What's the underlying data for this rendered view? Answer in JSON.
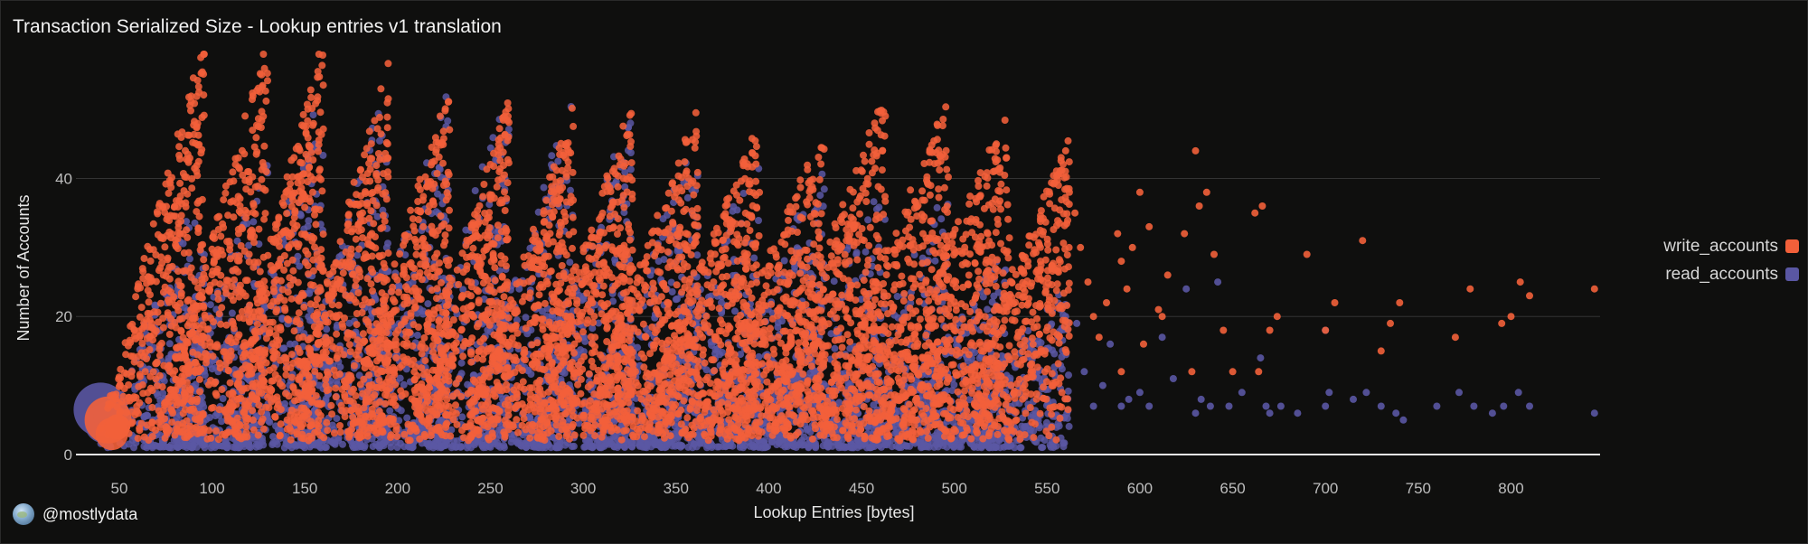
{
  "chart_data": {
    "type": "scatter",
    "title": "Transaction Serialized Size - Lookup entries v1 translation",
    "xlabel": "Lookup Entries [bytes]",
    "ylabel": "Number of Accounts",
    "xlim": [
      32,
      848
    ],
    "ylim": [
      0,
      58
    ],
    "x_ticks": [
      "50",
      "100",
      "150",
      "200",
      "250",
      "300",
      "350",
      "400",
      "450",
      "500",
      "550",
      "600",
      "650",
      "700",
      "750",
      "800"
    ],
    "x_tick_values": [
      50,
      100,
      150,
      200,
      250,
      300,
      350,
      400,
      450,
      500,
      550,
      600,
      650,
      700,
      750,
      800
    ],
    "y_ticks": [
      "0",
      "20",
      "40"
    ],
    "y_tick_values": [
      0,
      20,
      40
    ],
    "grid": true,
    "legend_position": "right",
    "clusters": [
      {
        "x_start": 40,
        "x_end": 96,
        "max_write": 59,
        "max_read": 40
      },
      {
        "x_start": 72,
        "x_end": 130,
        "max_write": 59,
        "max_read": 42
      },
      {
        "x_start": 106,
        "x_end": 160,
        "max_write": 59,
        "max_read": 55
      },
      {
        "x_start": 140,
        "x_end": 195,
        "max_write": 55,
        "max_read": 55
      },
      {
        "x_start": 172,
        "x_end": 228,
        "max_write": 52,
        "max_read": 53
      },
      {
        "x_start": 205,
        "x_end": 260,
        "max_write": 50,
        "max_read": 55
      },
      {
        "x_start": 237,
        "x_end": 295,
        "max_write": 49,
        "max_read": 53
      },
      {
        "x_start": 268,
        "x_end": 327,
        "max_write": 50,
        "max_read": 51
      },
      {
        "x_start": 300,
        "x_end": 362,
        "max_write": 49,
        "max_read": 48
      },
      {
        "x_start": 330,
        "x_end": 395,
        "max_write": 47,
        "max_read": 45
      },
      {
        "x_start": 362,
        "x_end": 430,
        "max_write": 46,
        "max_read": 42
      },
      {
        "x_start": 393,
        "x_end": 463,
        "max_write": 51,
        "max_read": 40
      },
      {
        "x_start": 425,
        "x_end": 497,
        "max_write": 50,
        "max_read": 38
      },
      {
        "x_start": 455,
        "x_end": 530,
        "max_write": 49,
        "max_read": 30
      },
      {
        "x_start": 495,
        "x_end": 562,
        "max_write": 44,
        "max_read": 25
      }
    ],
    "series": [
      {
        "name": "write_accounts",
        "color": "#f2603a",
        "sparse_points": [
          [
            560,
            44
          ],
          [
            562,
            38
          ],
          [
            565,
            35
          ],
          [
            568,
            30
          ],
          [
            572,
            25
          ],
          [
            575,
            20
          ],
          [
            578,
            17
          ],
          [
            582,
            22
          ],
          [
            588,
            32
          ],
          [
            590,
            28
          ],
          [
            593,
            24
          ],
          [
            596,
            30
          ],
          [
            600,
            38
          ],
          [
            602,
            16
          ],
          [
            605,
            33
          ],
          [
            610,
            21
          ],
          [
            615,
            26
          ],
          [
            624,
            32
          ],
          [
            630,
            44
          ],
          [
            632,
            36
          ],
          [
            636,
            38
          ],
          [
            640,
            29
          ],
          [
            645,
            18
          ],
          [
            650,
            12
          ],
          [
            662,
            35
          ],
          [
            666,
            36
          ],
          [
            670,
            18
          ],
          [
            674,
            20
          ],
          [
            690,
            29
          ],
          [
            700,
            18
          ],
          [
            705,
            22
          ],
          [
            720,
            31
          ],
          [
            730,
            15
          ],
          [
            735,
            19
          ],
          [
            740,
            22
          ],
          [
            770,
            17
          ],
          [
            778,
            24
          ],
          [
            795,
            19
          ],
          [
            800,
            20
          ],
          [
            805,
            25
          ],
          [
            810,
            23
          ],
          [
            845,
            24
          ],
          [
            628,
            12
          ],
          [
            664,
            12
          ],
          [
            590,
            12
          ],
          [
            612,
            20
          ]
        ]
      },
      {
        "name": "read_accounts",
        "color": "#5a57a3",
        "sparse_points": [
          [
            560,
            20
          ],
          [
            566,
            19
          ],
          [
            570,
            12
          ],
          [
            575,
            7
          ],
          [
            580,
            10
          ],
          [
            584,
            16
          ],
          [
            590,
            7
          ],
          [
            594,
            8
          ],
          [
            600,
            9
          ],
          [
            605,
            7
          ],
          [
            612,
            17
          ],
          [
            618,
            11
          ],
          [
            625,
            24
          ],
          [
            630,
            6
          ],
          [
            633,
            8
          ],
          [
            638,
            7
          ],
          [
            642,
            25
          ],
          [
            648,
            7
          ],
          [
            655,
            9
          ],
          [
            665,
            14
          ],
          [
            668,
            7
          ],
          [
            670,
            6
          ],
          [
            676,
            7
          ],
          [
            685,
            6
          ],
          [
            700,
            7
          ],
          [
            702,
            9
          ],
          [
            715,
            8
          ],
          [
            722,
            9
          ],
          [
            730,
            7
          ],
          [
            738,
            6
          ],
          [
            742,
            5
          ],
          [
            760,
            7
          ],
          [
            772,
            9
          ],
          [
            780,
            7
          ],
          [
            790,
            6
          ],
          [
            796,
            7
          ],
          [
            804,
            9
          ],
          [
            810,
            7
          ],
          [
            845,
            6
          ],
          [
            700,
            18
          ]
        ]
      }
    ]
  },
  "watermark": {
    "handle": "@mostlydata",
    "icon": "globe-icon"
  }
}
